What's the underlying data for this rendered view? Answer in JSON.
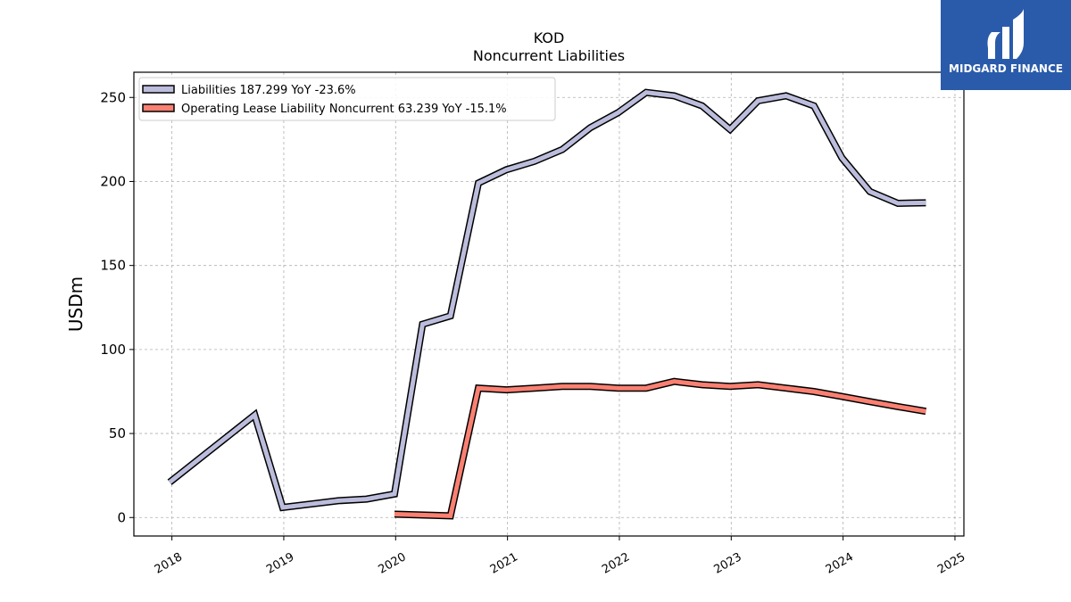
{
  "chart_data": {
    "type": "line",
    "title": "KOD",
    "subtitle": "Noncurrent  Liabilities",
    "xlabel": "",
    "ylabel": "USDm",
    "xlim": [
      2017.66,
      2025.08
    ],
    "ylim": [
      -11,
      265
    ],
    "x_ticks": [
      2018,
      2019,
      2020,
      2021,
      2022,
      2023,
      2024,
      2025
    ],
    "x_tick_labels": [
      "2018",
      "2019",
      "2020",
      "2021",
      "2022",
      "2023",
      "2024",
      "2025"
    ],
    "y_ticks": [
      0,
      50,
      100,
      150,
      200,
      250
    ],
    "y_tick_labels": [
      "0",
      "50",
      "100",
      "150",
      "200",
      "250"
    ],
    "grid": true,
    "legend_position": "top-left",
    "series": [
      {
        "name": "Liabilities  187.299 YoY -23.6%",
        "color": "#bcbddc",
        "x": [
          2017.98,
          2018.74,
          2018.99,
          2019.24,
          2019.49,
          2019.74,
          2019.99,
          2020.24,
          2020.49,
          2020.74,
          2020.99,
          2021.24,
          2021.49,
          2021.74,
          2021.99,
          2022.24,
          2022.49,
          2022.74,
          2022.99,
          2023.24,
          2023.49,
          2023.74,
          2023.99,
          2024.24,
          2024.49,
          2024.74
        ],
        "values": [
          21,
          61,
          6,
          8,
          10,
          11,
          14,
          115,
          120,
          199,
          207,
          212,
          219,
          232,
          241,
          253,
          251,
          245,
          231,
          248,
          251,
          245,
          214,
          194,
          187,
          187.3
        ]
      },
      {
        "name": "Operating Lease Liability Noncurrent  63.239 YoY -15.1%",
        "color": "#fa8072",
        "x": [
          2019.99,
          2020.49,
          2020.74,
          2020.99,
          2021.24,
          2021.49,
          2021.74,
          2021.99,
          2022.24,
          2022.49,
          2022.74,
          2022.99,
          2023.24,
          2023.49,
          2023.74,
          2023.99,
          2024.24,
          2024.49,
          2024.74
        ],
        "values": [
          2,
          1,
          77,
          76,
          77,
          78,
          78,
          77,
          77,
          81,
          79,
          78,
          79,
          77,
          75,
          72,
          69,
          66,
          63.2
        ]
      }
    ]
  },
  "logo": {
    "text": "MIDGARD FINANCE",
    "background": "#2a5bab"
  }
}
